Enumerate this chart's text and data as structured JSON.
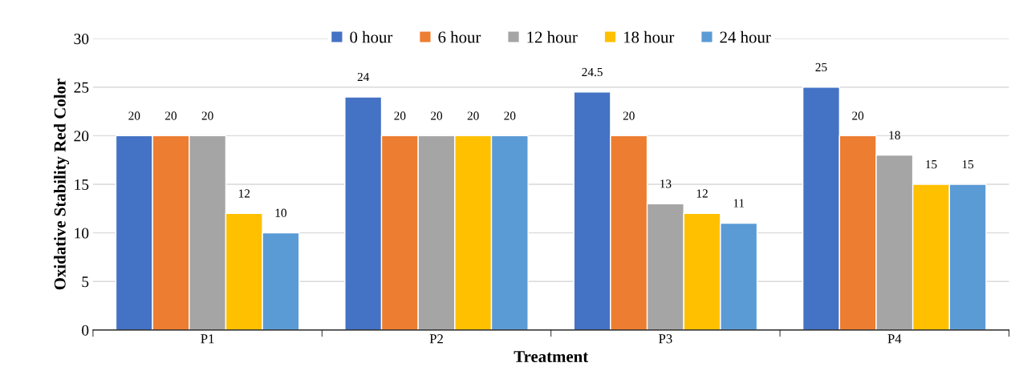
{
  "chart_data": {
    "type": "bar",
    "xlabel": "Treatment",
    "ylabel": "Oxidative Stability Red Color",
    "categories": [
      "P1",
      "P2",
      "P3",
      "P4"
    ],
    "series": [
      {
        "name": "0 hour",
        "color": "#4472c4",
        "values": [
          20,
          24,
          24.5,
          25
        ]
      },
      {
        "name": "6 hour",
        "color": "#ed7d31",
        "values": [
          20,
          20,
          20,
          20
        ]
      },
      {
        "name": "12 hour",
        "color": "#a5a5a5",
        "values": [
          20,
          20,
          13,
          18
        ]
      },
      {
        "name": "18 hour",
        "color": "#ffc000",
        "values": [
          12,
          20,
          12,
          15
        ]
      },
      {
        "name": "24 hour",
        "color": "#5b9bd5",
        "values": [
          10,
          20,
          11,
          15
        ]
      }
    ],
    "ylim": [
      0,
      30
    ],
    "yticks": [
      0,
      5,
      10,
      15,
      20,
      25,
      30
    ],
    "grid": "y",
    "legend": "top",
    "data_labels": true
  }
}
